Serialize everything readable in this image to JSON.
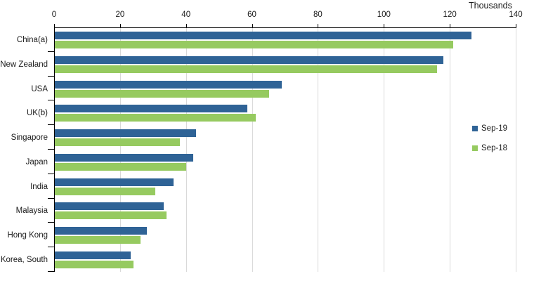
{
  "chart_data": {
    "type": "bar",
    "orientation": "horizontal",
    "unit_label": "Thousands",
    "categories": [
      "China(a)",
      "New Zealand",
      "USA",
      "UK(b)",
      "Singapore",
      "Japan",
      "India",
      "Malaysia",
      "Hong Kong",
      "Korea, South"
    ],
    "series": [
      {
        "name": "Sep-19",
        "color": "#2F6396",
        "values": [
          126.5,
          118,
          69,
          58.5,
          43,
          42,
          36,
          33,
          28,
          23
        ]
      },
      {
        "name": "Sep-18",
        "color": "#96CA60",
        "values": [
          121,
          116,
          65,
          61,
          38,
          40,
          30.5,
          34,
          26,
          24
        ]
      }
    ],
    "xlim": [
      0,
      140
    ],
    "xticks": [
      0,
      20,
      40,
      60,
      80,
      100,
      120,
      140
    ],
    "grid": true,
    "legend_position": "inside-right",
    "axis_color": "#000000",
    "gridline_color": "#D9D9D9",
    "text_color": "#1A1A1A",
    "background": "#FFFFFF"
  }
}
